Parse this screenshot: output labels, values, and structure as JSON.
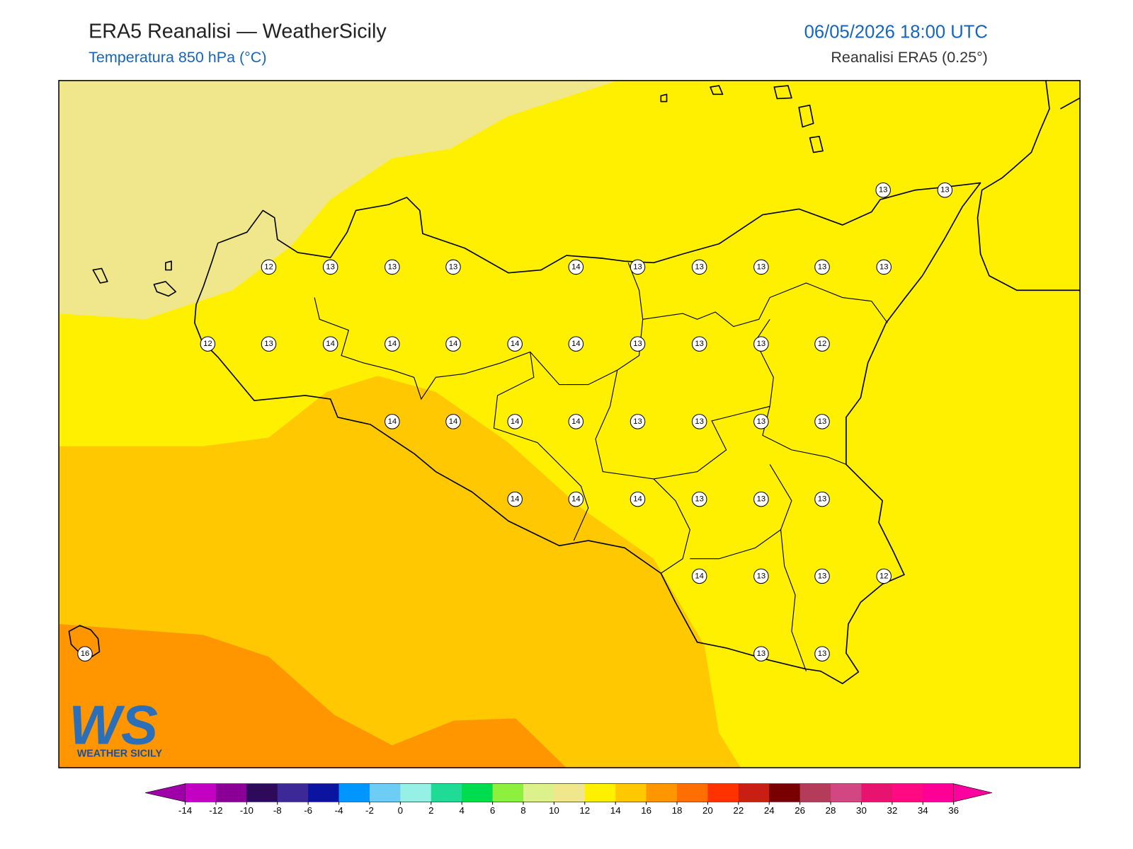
{
  "header": {
    "title": "ERA5 Reanalisi — WeatherSicily",
    "subtitle": "Temperatura 850 hPa (°C)",
    "datetime": "06/05/2026 18:00 UTC",
    "source": "Reanalisi ERA5 (0.25°)"
  },
  "stations": [
    13,
    13,
    12,
    13,
    13,
    13,
    14,
    13,
    13,
    13,
    13,
    13,
    12,
    13,
    14,
    14,
    14,
    14,
    14,
    13,
    13,
    13,
    12,
    14,
    14,
    14,
    14,
    13,
    13,
    13,
    13,
    14,
    14,
    14,
    13,
    13,
    13,
    14,
    13,
    13,
    12,
    16,
    13,
    13
  ],
  "colorbar": {
    "levels": [
      -14,
      -12,
      -10,
      -8,
      -6,
      -4,
      -2,
      0,
      2,
      4,
      6,
      8,
      10,
      12,
      14,
      16,
      18,
      20,
      22,
      24,
      26,
      28,
      30,
      32,
      34,
      36
    ],
    "colors": [
      "#c400c4",
      "#8a0096",
      "#2d0a5a",
      "#3c2896",
      "#0a14a0",
      "#0096ff",
      "#6ecdf5",
      "#96f0e6",
      "#1edc96",
      "#00dc50",
      "#8cf03c",
      "#dcf08c",
      "#f0e68c",
      "#fff000",
      "#ffc800",
      "#ff9600",
      "#ff6e00",
      "#ff3200",
      "#c81e14",
      "#780000",
      "#b43c5a",
      "#d24682",
      "#e6146e",
      "#ff0a82",
      "#ff0096"
    ],
    "extend_colors": [
      "#a000a8",
      "#ff00a0"
    ]
  },
  "logo": {
    "mark": "WS",
    "text": "WEATHER SICILY"
  }
}
